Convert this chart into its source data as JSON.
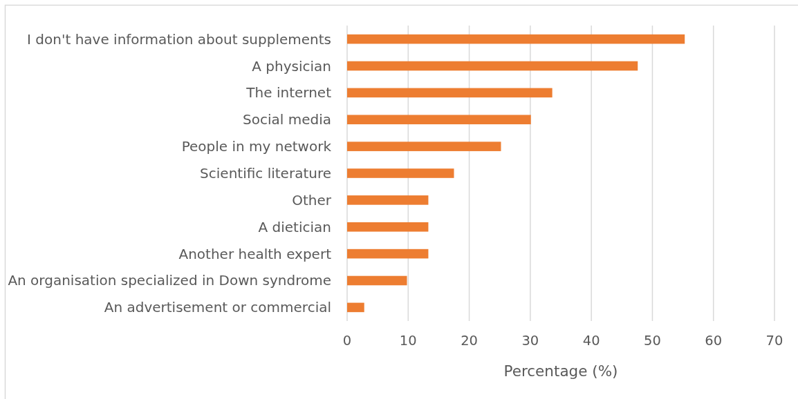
{
  "chart_data": {
    "type": "bar",
    "orientation": "horizontal",
    "xlabel": "Percentage (%)",
    "categories": [
      "I don't have information about supplements",
      "A physician",
      "The internet",
      "Social media",
      "People in my network",
      "Scientific literature",
      "Other",
      "A dietician",
      "Another health expert",
      "An organisation specialized in Down syndrome",
      "An advertisement or commercial"
    ],
    "values": [
      55.3,
      47.6,
      33.6,
      30.1,
      25.2,
      17.5,
      13.3,
      13.3,
      13.3,
      9.8,
      2.8
    ],
    "color": "#ed7d31",
    "xlim": [
      0,
      70
    ],
    "xticks": [
      0,
      10,
      20,
      30,
      40,
      50,
      60,
      70
    ],
    "grid": "x"
  }
}
